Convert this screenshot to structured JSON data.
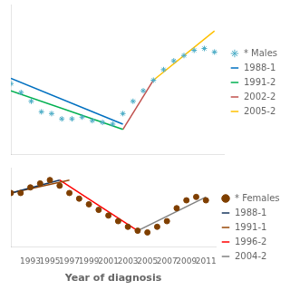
{
  "chart_data": [
    {
      "type": "scatter",
      "xlim": [
        1991,
        2012
      ],
      "ylim": [
        3.5,
        12.0
      ],
      "grid": false,
      "tick_labels": false,
      "legend": "right",
      "series": [
        {
          "name": "* Males",
          "type": "scatter",
          "color": "#4bacc6",
          "marker": "star",
          "x": [
            1991,
            1992,
            1993,
            1994,
            1995,
            1996,
            1997,
            1998,
            1999,
            2000,
            2001,
            2002,
            2003,
            2004,
            2005,
            2006,
            2007,
            2008,
            2009,
            2010,
            2011
          ],
          "values": [
            7.5,
            7.0,
            6.5,
            5.9,
            5.8,
            5.5,
            5.5,
            5.6,
            5.4,
            5.3,
            5.2,
            5.8,
            6.5,
            7.1,
            7.7,
            8.3,
            8.8,
            9.1,
            9.4,
            9.5,
            9.3
          ]
        },
        {
          "name": "1988-1",
          "type": "line",
          "color": "#0070c0",
          "line_style": "solid",
          "x": [
            1991,
            2002
          ],
          "values": [
            7.8,
            5.2
          ]
        },
        {
          "name": "1991-2",
          "type": "line",
          "color": "#00b050",
          "line_style": "solid",
          "x": [
            1991,
            2002
          ],
          "values": [
            7.1,
            4.9
          ]
        },
        {
          "name": "2002-2",
          "type": "line",
          "color": "#c0504d",
          "line_style": "solid",
          "x": [
            2002,
            2005
          ],
          "values": [
            4.9,
            7.7
          ]
        },
        {
          "name": "2005-2",
          "type": "line",
          "color": "#ffc000",
          "line_style": "solid",
          "x": [
            2005,
            2011
          ],
          "values": [
            7.7,
            10.5
          ]
        }
      ]
    },
    {
      "type": "scatter",
      "xlabel": "Year of diagnosis",
      "xlim": [
        1991,
        2012
      ],
      "xticks": [
        1993,
        1995,
        1997,
        1999,
        2001,
        2003,
        2005,
        2007,
        2009,
        2011
      ],
      "ylim": [
        1.6,
        3.0
      ],
      "grid": false,
      "tick_labels": "x",
      "legend": "right",
      "series": [
        {
          "name": "* Females",
          "type": "scatter",
          "color": "#7f3f00",
          "marker": "circle",
          "x": [
            1991,
            1992,
            1993,
            1994,
            1995,
            1996,
            1997,
            1998,
            1999,
            2000,
            2001,
            2002,
            2003,
            2004,
            2005,
            2006,
            2007,
            2008,
            2009,
            2010,
            2011
          ],
          "values": [
            2.55,
            2.55,
            2.65,
            2.72,
            2.78,
            2.68,
            2.55,
            2.45,
            2.35,
            2.25,
            2.15,
            2.05,
            1.95,
            1.88,
            1.85,
            1.95,
            2.05,
            2.28,
            2.42,
            2.48,
            2.42
          ]
        },
        {
          "name": "1988-1",
          "type": "line",
          "color": "#17375e",
          "line_style": "solid",
          "x": [
            1991,
            1996
          ],
          "values": [
            2.55,
            2.78
          ]
        },
        {
          "name": "1991-1",
          "type": "line",
          "color": "#974706",
          "line_style": "solid",
          "x": [
            1991,
            1997
          ],
          "values": [
            2.55,
            2.78
          ]
        },
        {
          "name": "1996-2",
          "type": "line",
          "color": "#ff0000",
          "line_style": "solid",
          "x": [
            1996,
            2004
          ],
          "values": [
            2.78,
            1.88
          ]
        },
        {
          "name": "2004-2",
          "type": "line",
          "color": "#808080",
          "line_style": "solid",
          "x": [
            2004,
            2011
          ],
          "values": [
            1.88,
            2.48
          ]
        }
      ]
    }
  ]
}
